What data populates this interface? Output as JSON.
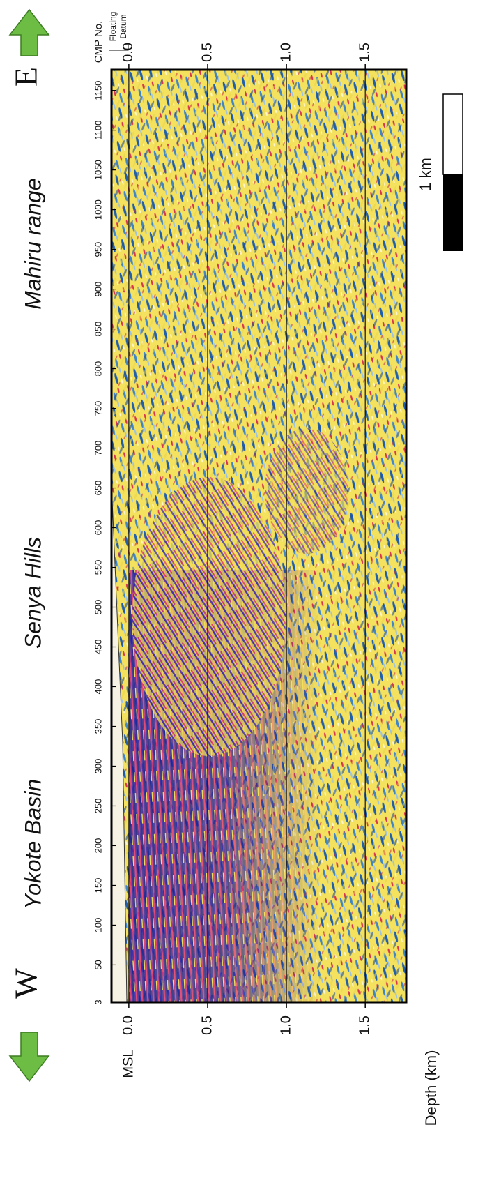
{
  "chart_data": {
    "type": "seismic-section",
    "x_label": "CMP No.",
    "y_label": "Depth (km)",
    "datum_label": [
      "Floating",
      "Datum"
    ],
    "msl_label": "MSL",
    "xlim": [
      3,
      1176
    ],
    "xticks": [
      3,
      50,
      100,
      150,
      200,
      250,
      300,
      350,
      400,
      450,
      500,
      550,
      600,
      650,
      700,
      750,
      800,
      850,
      900,
      950,
      1000,
      1050,
      1100,
      1150
    ],
    "ylim": [
      -0.11,
      1.76
    ],
    "y_inverted": true,
    "yticks": [
      {
        "value": 0,
        "label": "0.0"
      },
      {
        "value": 0.5,
        "label": "0.5"
      },
      {
        "value": 1,
        "label": "1.0"
      },
      {
        "value": 1.5,
        "label": "1.5"
      }
    ],
    "grid": true,
    "regions": [
      {
        "label": "Yokote Basin",
        "x": 202
      },
      {
        "label": "Senya Hills",
        "x": 518
      },
      {
        "label": "Mahiru range",
        "x": 957
      }
    ],
    "directions": {
      "west": "W",
      "east": "E"
    },
    "scale_bar": {
      "label": "1 km"
    }
  }
}
